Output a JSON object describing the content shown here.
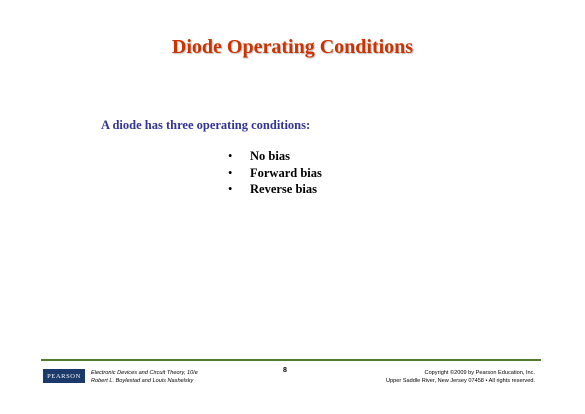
{
  "slide": {
    "title": "Diode Operating Conditions",
    "subtitle": "A diode has three operating conditions:",
    "bullets": [
      {
        "marker": "•",
        "text": "No bias"
      },
      {
        "marker": "•",
        "text": "Forward bias"
      },
      {
        "marker": "•",
        "text": "Reverse bias"
      }
    ]
  },
  "footer": {
    "logo_text": "PEARSON",
    "book_line1": "Electronic Devices and Circuit Theory, 10/e",
    "book_line2": "Robert L. Boylestad and Louis Nashelsky",
    "page_number": "8",
    "copyright_line1": "Copyright ©2009 by Pearson Education, Inc.",
    "copyright_line2": "Upper Saddle River, New Jersey 07458 • All rights reserved."
  },
  "colors": {
    "title": "#cc3300",
    "subtitle": "#333399",
    "footer_rule": "#4f7d2e",
    "logo_bg": "#1b3a6b"
  }
}
